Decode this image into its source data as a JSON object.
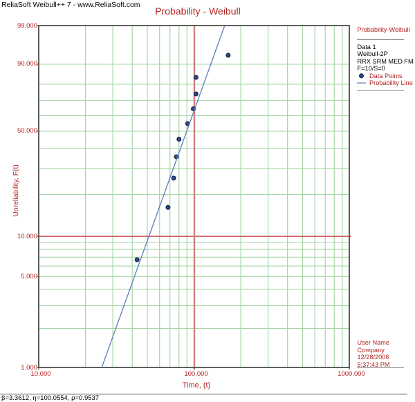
{
  "header": {
    "title": "ReliaSoft Weibull++ 7 - www.ReliaSoft.com"
  },
  "chart_data": {
    "type": "scatter",
    "title": "Probability - Weibull",
    "xlabel": "Time, (t)",
    "ylabel": "Unreliability, F(t)",
    "x_scale": "log",
    "y_scale": "weibull-probability",
    "xlim": [
      10,
      1000
    ],
    "ylim": [
      1,
      99
    ],
    "grid": true,
    "x_ticks": [
      {
        "value": 10,
        "label": "10.000"
      },
      {
        "value": 100,
        "label": "100.000"
      },
      {
        "value": 1000,
        "label": "1000.000"
      }
    ],
    "y_ticks": [
      {
        "value": 99,
        "label": "99.000"
      },
      {
        "value": 90,
        "label": "90.000"
      },
      {
        "value": 50,
        "label": "50.000"
      },
      {
        "value": 10,
        "label": "10.000"
      },
      {
        "value": 5,
        "label": "5.000"
      },
      {
        "value": 1,
        "label": "1.000"
      }
    ],
    "x_gridlines": [
      20,
      30,
      40,
      50,
      60,
      70,
      80,
      90,
      200,
      300,
      400,
      500,
      600,
      700,
      800,
      900
    ],
    "y_gridlines": [
      2,
      3,
      4,
      5,
      6,
      7,
      8,
      9,
      20,
      30,
      40,
      50,
      60,
      70,
      80,
      90
    ],
    "crosshair": {
      "x": 100,
      "y": 10
    },
    "series": [
      {
        "name": "Data Points",
        "type": "scatter",
        "points": [
          {
            "t": 43,
            "F": 6.697
          },
          {
            "t": 68,
            "F": 16.226
          },
          {
            "t": 74,
            "F": 25.857
          },
          {
            "t": 77,
            "F": 35.51
          },
          {
            "t": 80,
            "F": 45.169
          },
          {
            "t": 91,
            "F": 54.831
          },
          {
            "t": 99,
            "F": 64.49
          },
          {
            "t": 103,
            "F": 74.143
          },
          {
            "t": 103,
            "F": 83.774
          },
          {
            "t": 166,
            "F": 93.303
          }
        ]
      },
      {
        "name": "Probability Line",
        "type": "line",
        "beta": 3.3612,
        "eta": 100.0554,
        "F_range": [
          1,
          99
        ]
      }
    ]
  },
  "side_panel": {
    "heading": "Probability-Weibull",
    "info_lines": [
      "Data 1",
      "Weibull-2P",
      "RRX SRM MED FM",
      "F=10/S=0"
    ],
    "legend": [
      {
        "marker": "dot",
        "label": "Data Points"
      },
      {
        "marker": "line",
        "label": "Probability Line"
      }
    ],
    "user_block": [
      "User Name",
      "Company",
      "12/28/2006",
      "5:37:43 PM"
    ]
  },
  "footer": {
    "results": "β=3.3612, η=100.0554, ρ=0.9537"
  },
  "colors": {
    "text_red": "#b22222",
    "grid_green": "#a6d7a6",
    "crosshair_vertical": "#d27d7d",
    "crosshair_horizontal": "#c65252",
    "point_fill": "#2e4b96",
    "point_stroke": "#13203f",
    "line_blue": "#5d7cbb",
    "plot_border": "#575757",
    "separator": "#7a7a7a"
  }
}
